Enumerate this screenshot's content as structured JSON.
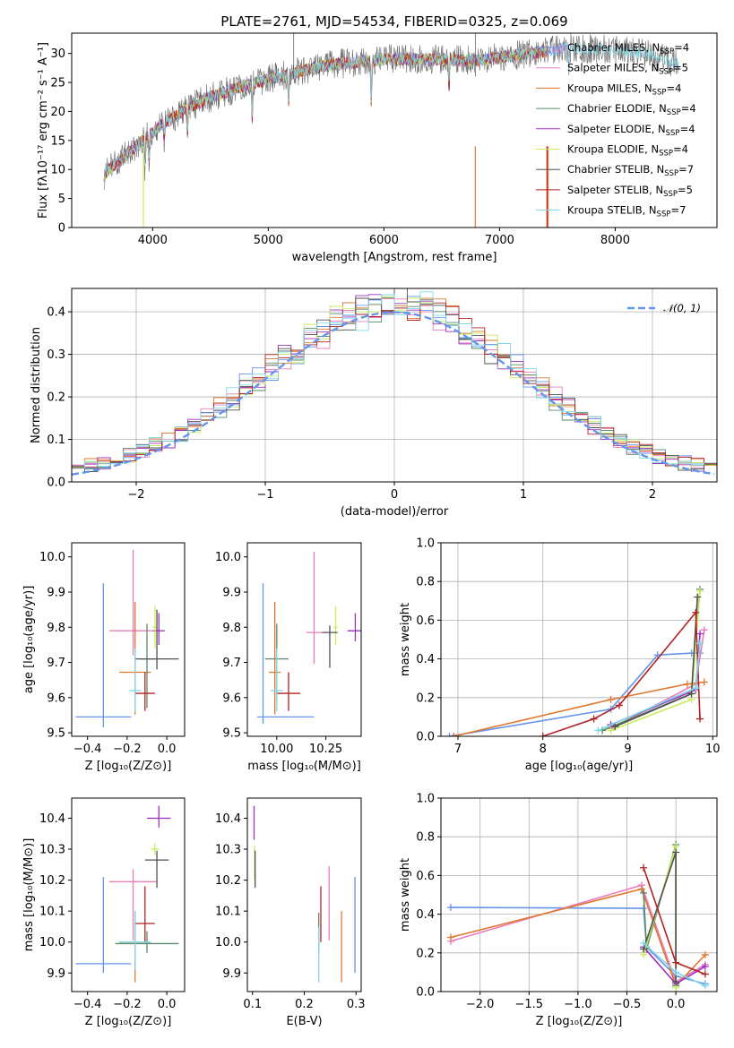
{
  "figure_title": "PLATE=2761, MJD=54534, FIBERID=0325, z=0.069",
  "colors": [
    "#6495ed",
    "#e87dbe",
    "#e0782e",
    "#5a8a6a",
    "#9d2fc0",
    "#c8ee5c",
    "#505050",
    "#b22222",
    "#7fd8e8"
  ],
  "chart_data": [
    {
      "id": "spectrum",
      "type": "line",
      "title": "PLATE=2761, MJD=54534, FIBERID=0325, z=0.069",
      "xlabel": "wavelength [Angstrom, rest frame]",
      "ylabel": "Flux [fλ10⁻¹⁷ erg cm⁻² s⁻¹ A⁻¹]",
      "xlim": [
        3300,
        8880
      ],
      "ylim": [
        0,
        33.5
      ],
      "xticks": [
        4000,
        5000,
        6000,
        7000,
        8000
      ],
      "yticks": [
        0,
        5,
        10,
        15,
        20,
        25,
        30
      ],
      "grid": false,
      "legend_location": "right",
      "continuum": [
        [
          3580,
          9
        ],
        [
          3650,
          10.5
        ],
        [
          3750,
          12
        ],
        [
          3850,
          14
        ],
        [
          3950,
          15.5
        ],
        [
          4100,
          18
        ],
        [
          4300,
          20.5
        ],
        [
          4500,
          22.5
        ],
        [
          4800,
          24.5
        ],
        [
          5100,
          26
        ],
        [
          5500,
          28
        ],
        [
          6000,
          29
        ],
        [
          6500,
          29
        ],
        [
          6800,
          28.8
        ],
        [
          7200,
          29.8
        ],
        [
          7600,
          31
        ],
        [
          8000,
          30.5
        ],
        [
          8300,
          29.8
        ],
        [
          8550,
          28.2
        ]
      ],
      "data_start_wavelength": 3580,
      "data_end_wavelength": 8550,
      "series": [
        {
          "name": "Chabrier MILES, N_SSP=4",
          "end": 7600
        },
        {
          "name": "Salpeter MILES, N_SSP=5",
          "end": 7600
        },
        {
          "name": "Kroupa MILES, N_SSP=4",
          "end": 7420
        },
        {
          "name": "Chabrier ELODIE, N_SSP=4",
          "end": 7420
        },
        {
          "name": "Salpeter ELODIE, N_SSP=4",
          "end": 7420
        },
        {
          "name": "Kroupa ELODIE, N_SSP=4",
          "end": 7420
        },
        {
          "name": "Chabrier STELIB, N_SSP=7",
          "end": 8550
        },
        {
          "name": "Salpeter STELIB, N_SSP=5",
          "end": 7420
        },
        {
          "name": "Kroupa STELIB, N_SSP=7",
          "end": 8550
        }
      ],
      "legend_labels": [
        {
          "base": "Chabrier MILES, N",
          "sub": "SSP",
          "tail": "=4"
        },
        {
          "base": "Salpeter MILES, N",
          "sub": "SSP",
          "tail": "=5"
        },
        {
          "base": "Kroupa MILES, N",
          "sub": "SSP",
          "tail": "=4"
        },
        {
          "base": "Chabrier ELODIE, N",
          "sub": "SSP",
          "tail": "=4"
        },
        {
          "base": "Salpeter ELODIE, N",
          "sub": "SSP",
          "tail": "=4"
        },
        {
          "base": "Kroupa ELODIE, N",
          "sub": "SSP",
          "tail": "=4"
        },
        {
          "base": "Chabrier STELIB, N",
          "sub": "SSP",
          "tail": "=7"
        },
        {
          "base": "Salpeter STELIB, N",
          "sub": "SSP",
          "tail": "=5"
        },
        {
          "base": "Kroupa STELIB, N",
          "sub": "SSP",
          "tail": "=7"
        }
      ]
    },
    {
      "id": "residuals",
      "type": "step",
      "xlabel": "(data-model)/error",
      "ylabel": "Normed distribution",
      "xlim": [
        -2.5,
        2.5
      ],
      "ylim": [
        0,
        0.455
      ],
      "xticks": [
        -2,
        -1,
        0,
        1,
        2
      ],
      "yticks": [
        0.0,
        0.1,
        0.2,
        0.3,
        0.4
      ],
      "grid": true,
      "bin_width": 0.1,
      "gaussian_label": "𝒩(0, 1)",
      "gaussian": {
        "mean": 0,
        "sigma": 1,
        "color": "#6495ed"
      },
      "legend_location": "top-right"
    },
    {
      "id": "age_vs_Z",
      "type": "errorbar",
      "xlabel": "Z [log₁₀(Z/Z⊙)]",
      "ylabel": "age  [log₁₀(age/yr)]",
      "xlim": [
        -0.48,
        0.09
      ],
      "ylim": [
        9.49,
        10.04
      ],
      "xticks": [
        -0.4,
        -0.2,
        0.0
      ],
      "yticks": [
        9.5,
        9.6,
        9.7,
        9.8,
        9.9,
        10.0
      ],
      "grid": false,
      "points": [
        {
          "x": -0.32,
          "y": 9.545,
          "xerr": 0.14,
          "yerr": [
            0.03,
            0.38
          ]
        },
        {
          "x": -0.17,
          "y": 9.79,
          "xerr": 0.12,
          "yerr": [
            0.07,
            0.23
          ]
        },
        {
          "x": -0.16,
          "y": 9.672,
          "xerr": 0.08,
          "yerr": [
            0.12,
            0.2
          ]
        },
        {
          "x": -0.1,
          "y": 9.71,
          "xerr": 0.04,
          "yerr": [
            0.14,
            0.1
          ]
        },
        {
          "x": -0.04,
          "y": 9.79,
          "xerr": 0.03,
          "yerr": [
            0.04,
            0.05
          ]
        },
        {
          "x": -0.06,
          "y": 9.8,
          "xerr": 0.01,
          "yerr": [
            0.06,
            0.06
          ]
        },
        {
          "x": -0.05,
          "y": 9.71,
          "xerr": 0.11,
          "yerr": [
            0.03,
            0.14
          ]
        },
        {
          "x": -0.11,
          "y": 9.612,
          "xerr": 0.05,
          "yerr": [
            0.05,
            0.06
          ]
        },
        {
          "x": -0.16,
          "y": 9.62,
          "xerr": 0.03,
          "yerr": [
            0.06,
            0.12
          ]
        }
      ]
    },
    {
      "id": "age_vs_mass",
      "type": "errorbar",
      "xlabel": "mass [log₁₀(M/M⊙)]",
      "ylabel": "",
      "xlim": [
        9.85,
        10.43
      ],
      "ylim": [
        9.49,
        10.04
      ],
      "xticks": [
        10.0,
        10.25
      ],
      "yticks": [
        9.5,
        9.6,
        9.7,
        9.8,
        9.9,
        10.0
      ],
      "grid": false,
      "points": [
        {
          "x": 9.93,
          "y": 9.545,
          "xerr": [
            0.03,
            0.26
          ],
          "yerr": [
            0.02,
            0.38
          ]
        },
        {
          "x": 10.19,
          "y": 9.785,
          "xerr": 0.04,
          "yerr": [
            0.09,
            0.23
          ]
        },
        {
          "x": 9.99,
          "y": 9.672,
          "xerr": 0.03,
          "yerr": [
            0.12,
            0.2
          ]
        },
        {
          "x": 10.0,
          "y": 9.71,
          "xerr": 0.06,
          "yerr": [
            0.12,
            0.1
          ]
        },
        {
          "x": 10.4,
          "y": 9.79,
          "xerr": 0.04,
          "yerr": [
            0.03,
            0.05
          ]
        },
        {
          "x": 10.3,
          "y": 9.8,
          "xerr": 0.01,
          "yerr": [
            0.05,
            0.06
          ]
        },
        {
          "x": 10.27,
          "y": 9.785,
          "xerr": 0.04,
          "yerr": [
            0.1,
            0.02
          ]
        },
        {
          "x": 10.06,
          "y": 9.612,
          "xerr": 0.06,
          "yerr": [
            0.05,
            0.06
          ]
        },
        {
          "x": 10.0,
          "y": 9.62,
          "xerr": 0.03,
          "yerr": [
            0.06,
            0.12
          ]
        }
      ]
    },
    {
      "id": "mass_weight_vs_age",
      "type": "line",
      "xlabel": "age  [log₁₀(age/yr)]",
      "ylabel": "mass weight",
      "xlim": [
        6.8,
        10.05
      ],
      "ylim": [
        0,
        1
      ],
      "xticks": [
        7,
        8,
        9,
        10
      ],
      "yticks": [
        0.0,
        0.2,
        0.4,
        0.6,
        0.8,
        1.0
      ],
      "grid": true,
      "series": [
        {
          "points": [
            [
              6.9,
              0.0
            ],
            [
              8.8,
              0.14
            ],
            [
              9.35,
              0.42
            ],
            [
              9.75,
              0.43
            ],
            [
              9.85,
              0.43
            ]
          ]
        },
        {
          "points": [
            [
              8.8,
              0.04
            ],
            [
              9.8,
              0.27
            ],
            [
              9.9,
              0.55
            ]
          ]
        },
        {
          "points": [
            [
              6.95,
              0.0
            ],
            [
              8.8,
              0.19
            ],
            [
              9.7,
              0.27
            ],
            [
              9.9,
              0.28
            ]
          ]
        },
        {
          "points": [
            [
              8.7,
              0.03
            ],
            [
              9.75,
              0.22
            ],
            [
              9.85,
              0.76
            ]
          ]
        },
        {
          "points": [
            [
              8.8,
              0.06
            ],
            [
              9.8,
              0.24
            ],
            [
              9.85,
              0.53
            ]
          ]
        },
        {
          "points": [
            [
              8.8,
              0.03
            ],
            [
              9.75,
              0.19
            ],
            [
              9.85,
              0.75
            ]
          ]
        },
        {
          "points": [
            [
              8.85,
              0.05
            ],
            [
              9.75,
              0.22
            ],
            [
              9.82,
              0.72
            ]
          ]
        },
        {
          "points": [
            [
              8.0,
              0.0
            ],
            [
              8.6,
              0.09
            ],
            [
              8.9,
              0.16
            ],
            [
              9.8,
              0.64
            ],
            [
              9.85,
              0.09
            ]
          ]
        },
        {
          "points": [
            [
              8.65,
              0.03
            ],
            [
              9.8,
              0.25
            ],
            [
              9.85,
              0.48
            ]
          ]
        }
      ]
    },
    {
      "id": "mass_vs_Z",
      "type": "errorbar",
      "xlabel": "Z [log₁₀(Z/Z⊙)]",
      "ylabel": "mass [log₁₀(M/M⊙)]",
      "xlim": [
        -0.48,
        0.09
      ],
      "ylim": [
        9.84,
        10.465
      ],
      "xticks": [
        -0.4,
        -0.2,
        0.0
      ],
      "yticks": [
        9.9,
        10.0,
        10.1,
        10.2,
        10.3,
        10.4
      ],
      "grid": false,
      "points": [
        {
          "x": -0.32,
          "y": 9.93,
          "xerr": 0.14,
          "yerr": [
            0.03,
            0.28
          ]
        },
        {
          "x": -0.17,
          "y": 10.195,
          "xerr": 0.12,
          "yerr": [
            0.19,
            0.04
          ]
        },
        {
          "x": -0.16,
          "y": 10.0,
          "xerr": 0.08,
          "yerr": [
            0.13,
            0.1
          ]
        },
        {
          "x": -0.1,
          "y": 9.995,
          "xerr": 0.16,
          "yerr": [
            0.03,
            0.04
          ]
        },
        {
          "x": -0.04,
          "y": 10.4,
          "xerr": 0.06,
          "yerr": [
            0.03,
            0.04
          ]
        },
        {
          "x": -0.06,
          "y": 10.3,
          "xerr": 0.02,
          "yerr": [
            0.02,
            0.02
          ]
        },
        {
          "x": -0.05,
          "y": 10.265,
          "xerr": 0.06,
          "yerr": [
            0.09,
            0.03
          ]
        },
        {
          "x": -0.11,
          "y": 10.06,
          "xerr": 0.05,
          "yerr": [
            0.06,
            0.12
          ]
        },
        {
          "x": -0.16,
          "y": 10.0,
          "xerr": 0.08,
          "yerr": [
            0.09,
            0.1
          ]
        }
      ]
    },
    {
      "id": "mass_vs_EBV",
      "type": "errorbar",
      "xlabel": "E(B-V)",
      "ylabel": "",
      "xlim": [
        0.09,
        0.31
      ],
      "ylim": [
        9.84,
        10.465
      ],
      "xticks": [
        0.1,
        0.2,
        0.3
      ],
      "yticks": [
        9.9,
        10.0,
        10.1,
        10.2,
        10.3,
        10.4
      ],
      "grid": false,
      "points": [
        {
          "x": 0.298,
          "y": 9.93,
          "xerr": 0.0,
          "yerr": [
            0.03,
            0.28
          ]
        },
        {
          "x": 0.248,
          "y": 10.195,
          "xerr": 0.0,
          "yerr": [
            0.19,
            0.05
          ]
        },
        {
          "x": 0.272,
          "y": 10.0,
          "xerr": 0.0,
          "yerr": [
            0.13,
            0.1
          ]
        },
        {
          "x": 0.228,
          "y": 9.995,
          "xerr": 0.0,
          "yerr": [
            0.03,
            0.1
          ]
        },
        {
          "x": 0.103,
          "y": 10.4,
          "xerr": 0.0,
          "yerr": [
            0.07,
            0.04
          ]
        },
        {
          "x": 0.104,
          "y": 10.3,
          "xerr": 0.0,
          "yerr": [
            0.1,
            0.01
          ]
        },
        {
          "x": 0.105,
          "y": 10.265,
          "xerr": 0.0,
          "yerr": [
            0.09,
            0.03
          ]
        },
        {
          "x": 0.232,
          "y": 10.06,
          "xerr": 0.0,
          "yerr": [
            0.06,
            0.12
          ]
        },
        {
          "x": 0.228,
          "y": 10.0,
          "xerr": 0.0,
          "yerr": [
            0.13,
            0.05
          ]
        }
      ]
    },
    {
      "id": "mass_weight_vs_Z",
      "type": "line",
      "xlabel": "Z [log₁₀(Z/Z⊙)]",
      "ylabel": "mass weight",
      "xlim": [
        -2.4,
        0.42
      ],
      "ylim": [
        0,
        1
      ],
      "xticks": [
        -2.0,
        -1.5,
        -1.0,
        -0.5,
        0.0
      ],
      "yticks": [
        0.0,
        0.2,
        0.4,
        0.6,
        0.8,
        1.0
      ],
      "grid": true,
      "series": [
        {
          "points": [
            [
              -2.3,
              0.435
            ],
            [
              -0.33,
              0.43
            ],
            [
              -0.3,
              0.23
            ],
            [
              0.0,
              0.08
            ],
            [
              0.3,
              0.04
            ]
          ]
        },
        {
          "points": [
            [
              -2.3,
              0.26
            ],
            [
              -0.35,
              0.55
            ],
            [
              0.0,
              0.05
            ],
            [
              0.3,
              0.14
            ]
          ]
        },
        {
          "points": [
            [
              -2.3,
              0.28
            ],
            [
              -0.35,
              0.53
            ],
            [
              0.0,
              0.03
            ],
            [
              0.3,
              0.19
            ]
          ]
        },
        {
          "points": [
            [
              -0.33,
              0.51
            ],
            [
              -0.3,
              0.22
            ],
            [
              0.0,
              0.76
            ],
            [
              0.0,
              0.03
            ]
          ]
        },
        {
          "points": [
            [
              -0.33,
              0.23
            ],
            [
              0.0,
              0.04
            ],
            [
              0.3,
              0.13
            ]
          ]
        },
        {
          "points": [
            [
              -0.33,
              0.19
            ],
            [
              0.0,
              0.75
            ],
            [
              0.0,
              0.02
            ]
          ]
        },
        {
          "points": [
            [
              -0.33,
              0.22
            ],
            [
              0.0,
              0.72
            ],
            [
              0.0,
              0.05
            ]
          ]
        },
        {
          "points": [
            [
              -0.33,
              0.64
            ],
            [
              0.0,
              0.15
            ],
            [
              0.3,
              0.09
            ]
          ]
        },
        {
          "points": [
            [
              -0.33,
              0.25
            ],
            [
              0.0,
              0.1
            ],
            [
              0.3,
              0.03
            ]
          ]
        }
      ]
    }
  ]
}
